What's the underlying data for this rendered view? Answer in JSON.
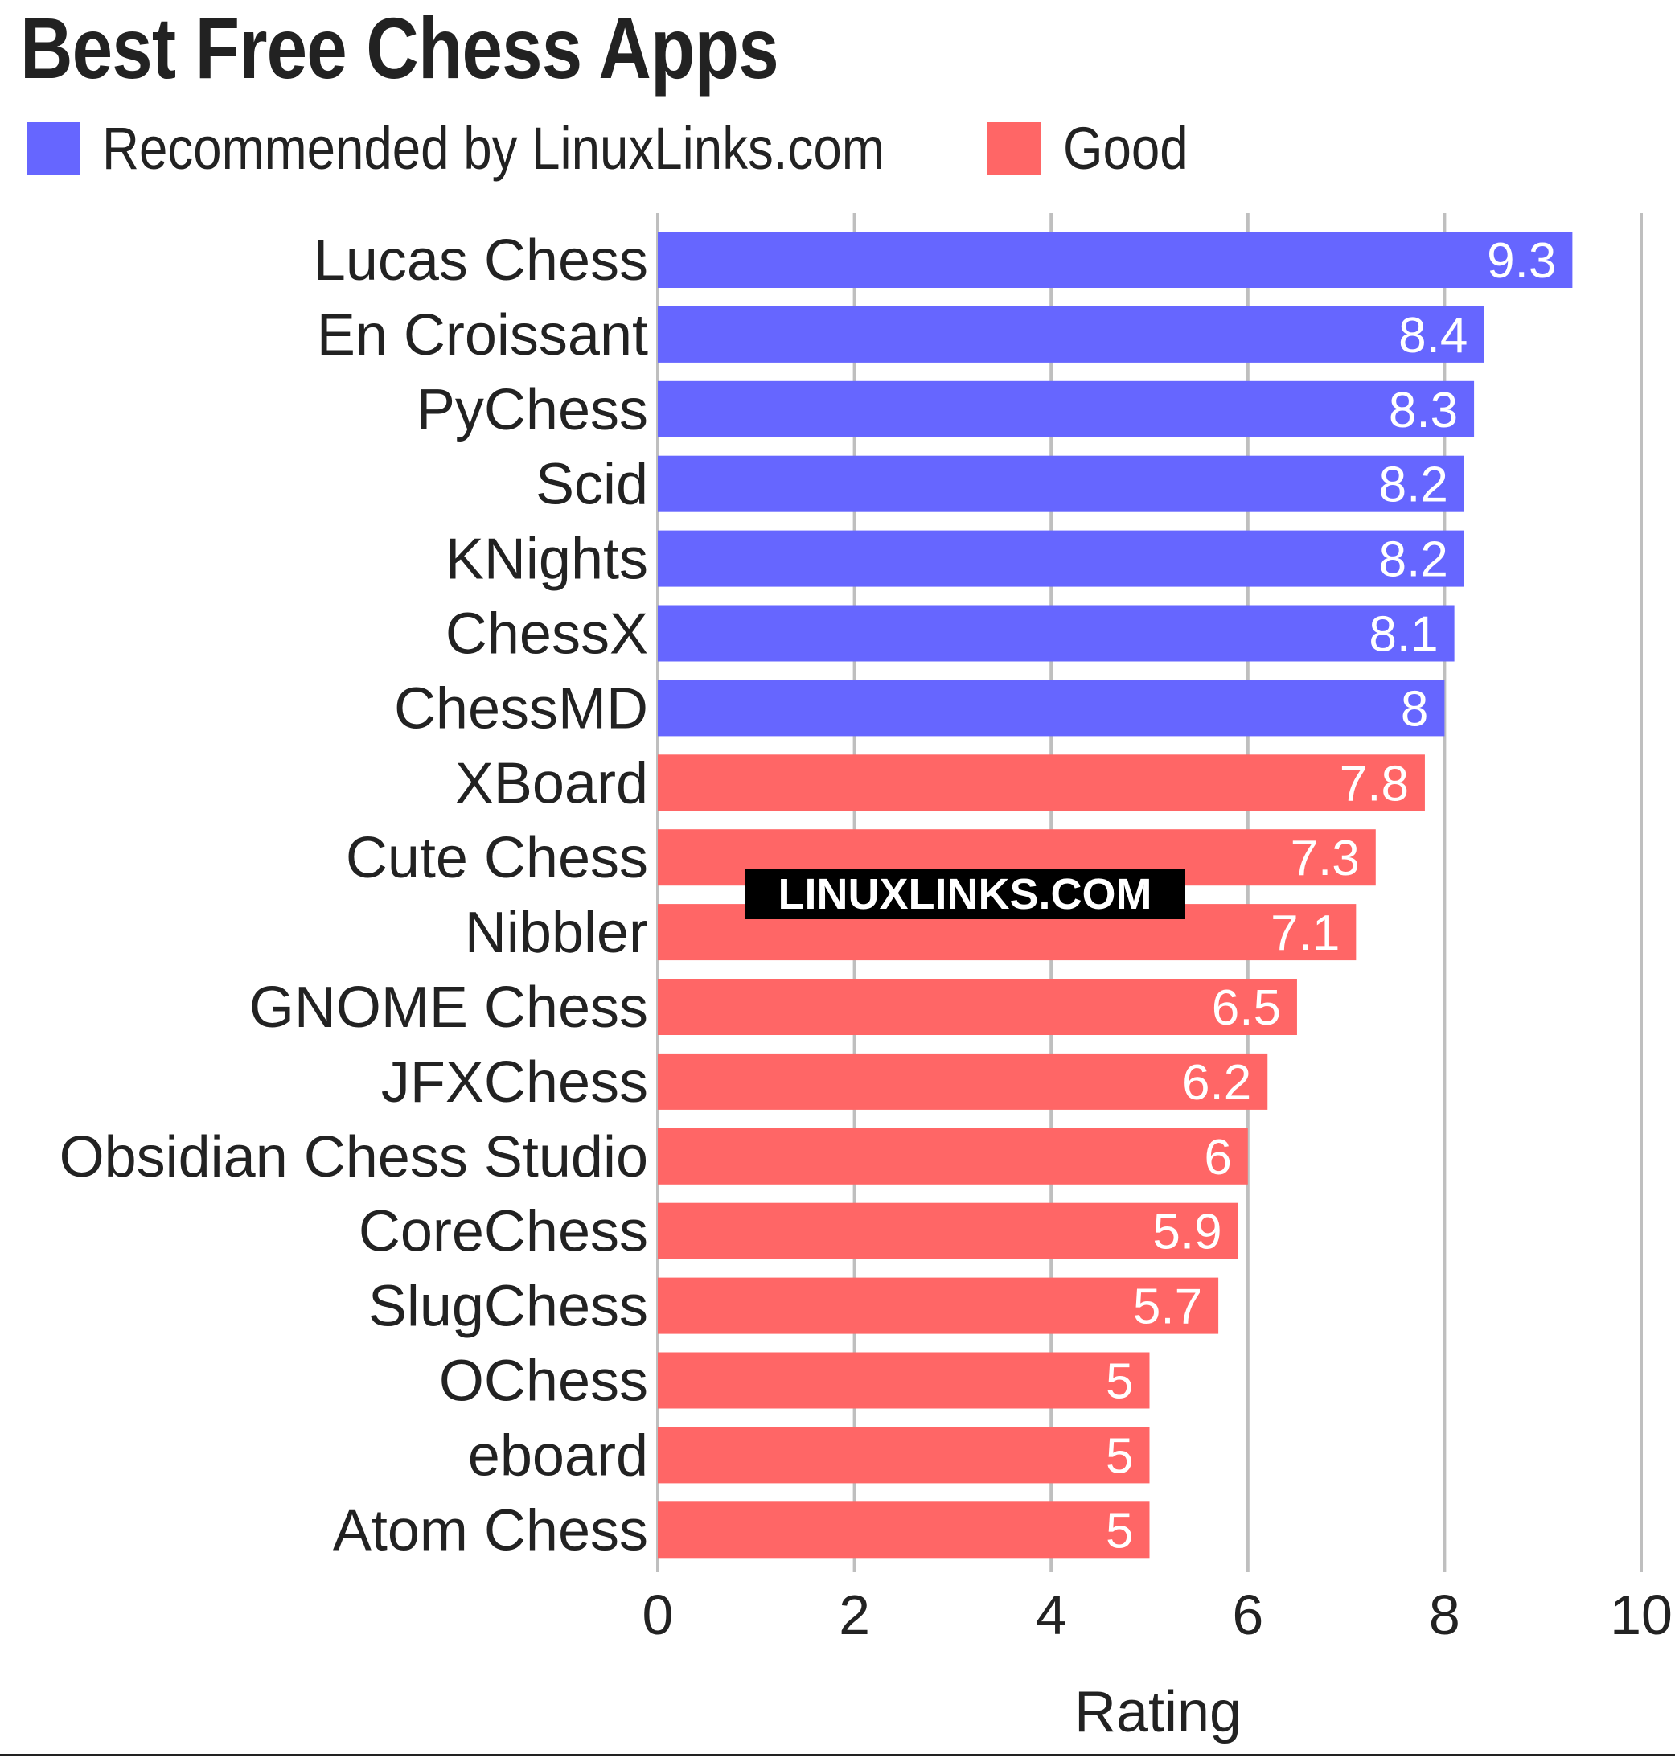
{
  "chart_data": {
    "type": "bar",
    "orientation": "horizontal",
    "title": "Best Free Chess Apps",
    "xlabel": "Rating",
    "ylabel": "",
    "xlim": [
      0,
      10
    ],
    "xticks": [
      "0",
      "2",
      "4",
      "6",
      "8",
      "10"
    ],
    "grid": "vertical",
    "legend_position": "top-left",
    "watermark": "LINUXLINKS.COM",
    "legend": [
      {
        "label": "Recommended by LinuxLinks.com",
        "color": "#6666ff"
      },
      {
        "label": "Good",
        "color": "#ff6666"
      }
    ],
    "categories": [
      "Lucas Chess",
      "En Croissant",
      "PyChess",
      "Scid",
      "KNights",
      "ChessX",
      "ChessMD",
      "XBoard",
      "Cute Chess",
      "Nibbler",
      "GNOME Chess",
      "JFXChess",
      "Obsidian Chess Studio",
      "CoreChess",
      "SlugChess",
      "OChess",
      "eboard",
      "Atom Chess"
    ],
    "values": [
      9.3,
      8.4,
      8.3,
      8.2,
      8.2,
      8.1,
      8,
      7.8,
      7.3,
      7.1,
      6.5,
      6.2,
      6,
      5.9,
      5.7,
      5,
      5,
      5
    ],
    "value_labels": [
      "9.3",
      "8.4",
      "8.3",
      "8.2",
      "8.2",
      "8.1",
      "8",
      "7.8",
      "7.3",
      "7.1",
      "6.5",
      "6.2",
      "6",
      "5.9",
      "5.7",
      "5",
      "5",
      "5"
    ],
    "groups": [
      "Recommended by LinuxLinks.com",
      "Recommended by LinuxLinks.com",
      "Recommended by LinuxLinks.com",
      "Recommended by LinuxLinks.com",
      "Recommended by LinuxLinks.com",
      "Recommended by LinuxLinks.com",
      "Recommended by LinuxLinks.com",
      "Good",
      "Good",
      "Good",
      "Good",
      "Good",
      "Good",
      "Good",
      "Good",
      "Good",
      "Good",
      "Good"
    ]
  }
}
